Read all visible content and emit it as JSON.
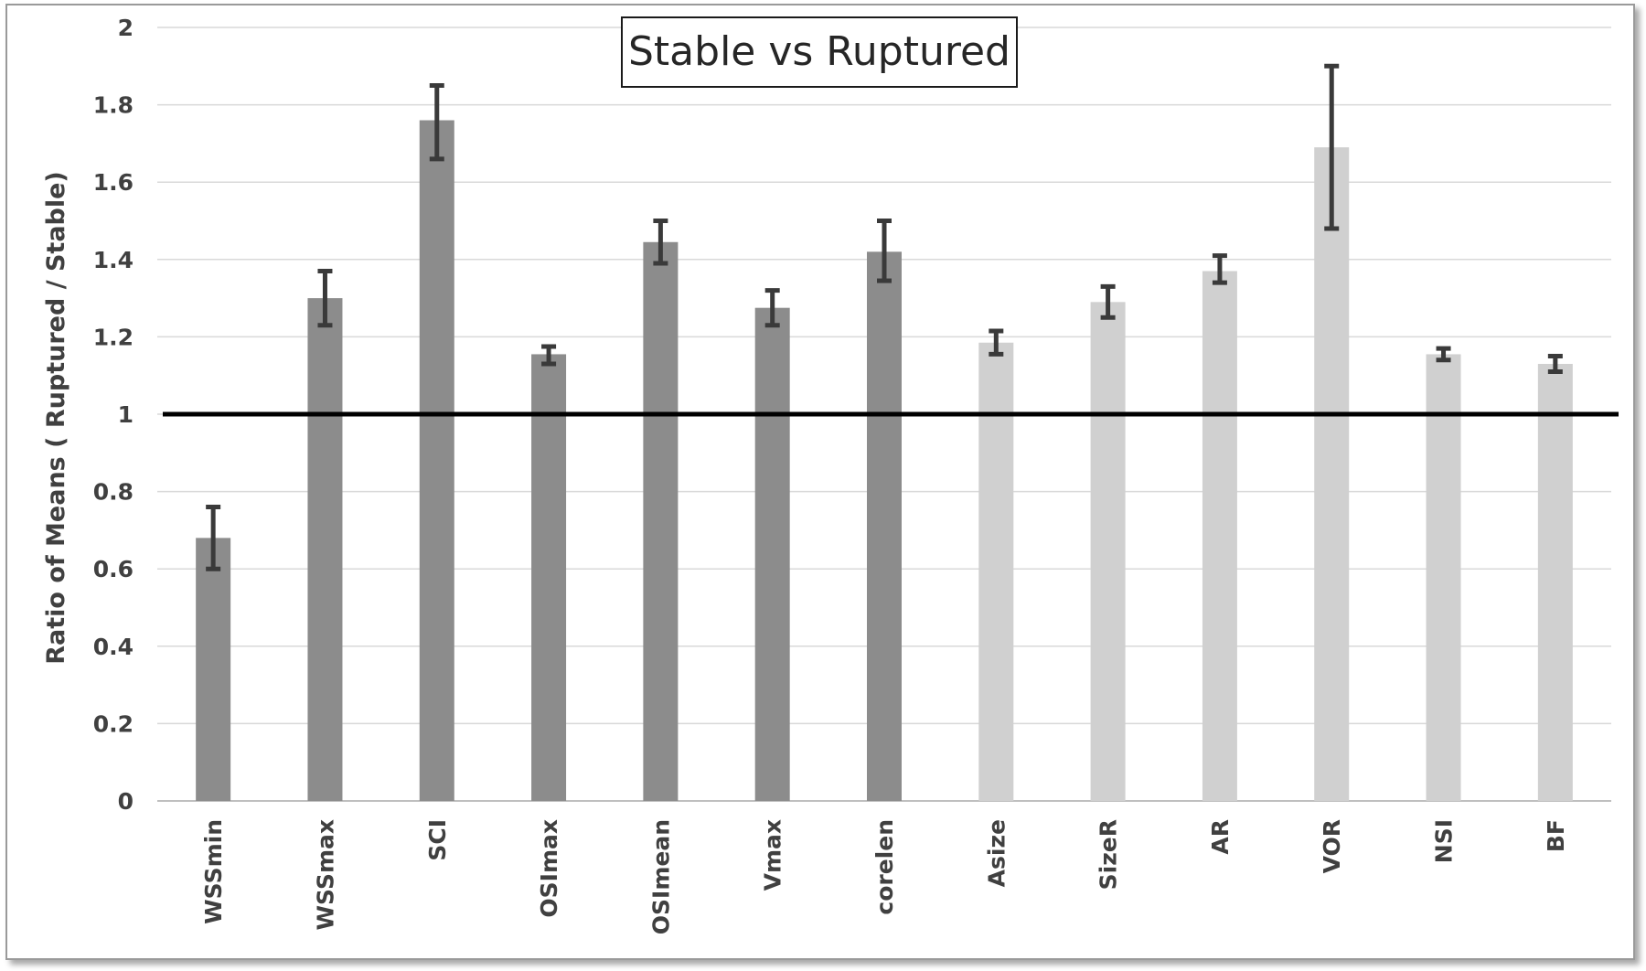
{
  "chart_data": {
    "type": "bar",
    "title": "Stable vs Ruptured",
    "xlabel": "",
    "ylabel": "Ratio of Means ( Ruptured / Stable)",
    "ylim": [
      0,
      2
    ],
    "yticks": [
      "0",
      "0.2",
      "0.4",
      "0.6",
      "0.8",
      "1",
      "1.2",
      "1.4",
      "1.6",
      "1.8",
      "2"
    ],
    "categories": [
      "WSSmin",
      "WSSmax",
      "SCI",
      "OSImax",
      "OSImean",
      "Vmax",
      "corelen",
      "Asize",
      "SizeR",
      "AR",
      "VOR",
      "NSI",
      "BF"
    ],
    "values": [
      0.68,
      1.3,
      1.76,
      1.155,
      1.445,
      1.275,
      1.42,
      1.185,
      1.29,
      1.37,
      1.69,
      1.155,
      1.13
    ],
    "error_low": [
      0.6,
      1.23,
      1.66,
      1.13,
      1.39,
      1.23,
      1.345,
      1.155,
      1.25,
      1.34,
      1.48,
      1.14,
      1.11
    ],
    "error_high": [
      0.76,
      1.37,
      1.85,
      1.175,
      1.5,
      1.32,
      1.5,
      1.215,
      1.33,
      1.41,
      1.9,
      1.17,
      1.15
    ],
    "bar_colors": [
      "#8c8c8c",
      "#8c8c8c",
      "#8c8c8c",
      "#8c8c8c",
      "#8c8c8c",
      "#8c8c8c",
      "#8c8c8c",
      "#d0d0d0",
      "#d0d0d0",
      "#d0d0d0",
      "#d0d0d0",
      "#d0d0d0",
      "#d0d0d0"
    ],
    "reference_line": 1,
    "grid": true,
    "legend": "none",
    "colors": {
      "bar_dark": "#8c8c8c",
      "bar_light": "#d0d0d0",
      "error_bar": "#3a3a3a",
      "reference_line": "#000000",
      "grid": "#d9d9d9"
    }
  }
}
